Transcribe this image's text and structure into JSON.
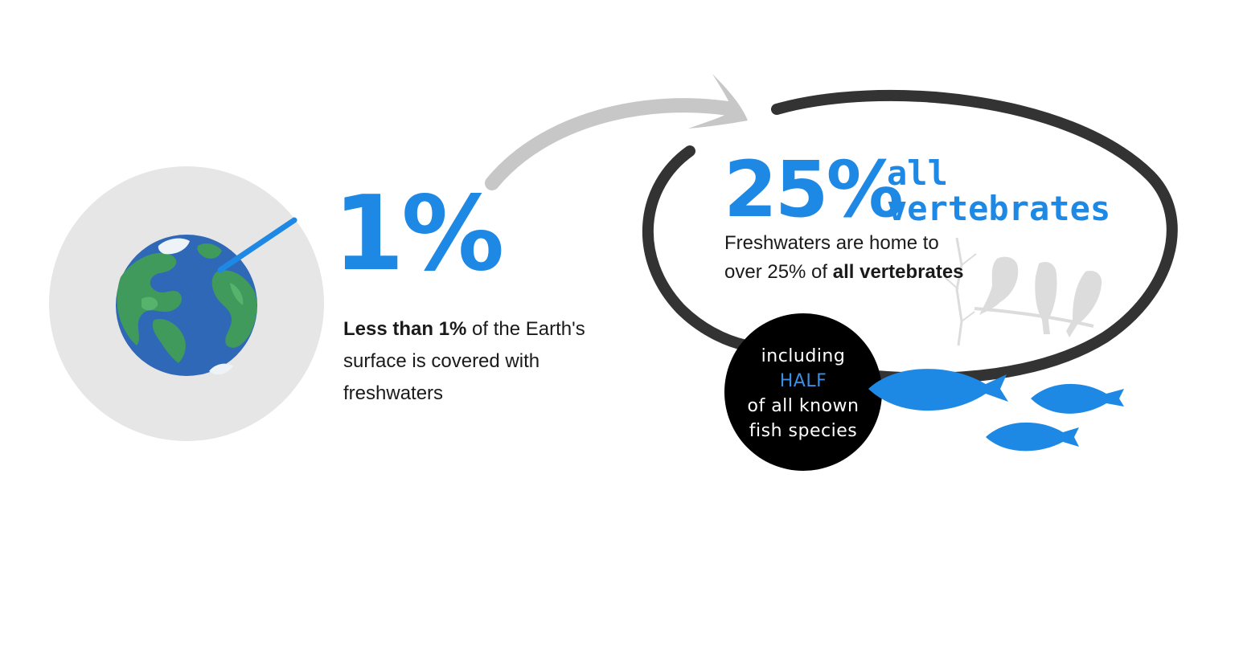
{
  "colors": {
    "accent": "#1e88e5",
    "globe_ocean": "#3068b8",
    "globe_land": "#3f9a5c",
    "globe_land_highlight": "#56b36b",
    "ice": "#eef3f8",
    "backdrop_circle": "#e6e6e6",
    "arrow": "#c7c7c7",
    "oval_stroke": "#333333",
    "badge": "#000000",
    "birds": "#dcdcdc"
  },
  "icons": [
    "earth-globe-icon",
    "curved-arrow-icon",
    "birds-on-branch-icon",
    "fish-icon"
  ],
  "freshwater_area": {
    "stat": "1%",
    "description_bold": "Less than 1%",
    "description_line1_rest": " of the Earth's",
    "description_line2": "surface is covered with",
    "description_line3": "freshwaters"
  },
  "vertebrates": {
    "stat": "25%",
    "label_line1": "all",
    "label_line2": "vertebrates",
    "description_line1": "Freshwaters are home to",
    "description_line2_plain": "over 25% of ",
    "description_line2_bold": "all vertebrates"
  },
  "fish_badge": {
    "line1": "including",
    "line2": "HALF",
    "line3": "of all known",
    "line4": "fish species"
  }
}
